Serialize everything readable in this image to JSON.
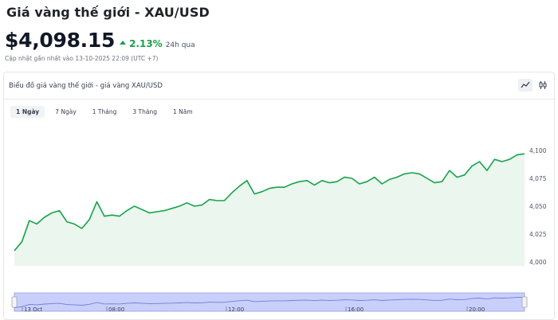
{
  "header": {
    "title": "Giá vàng thế giới - XAU/USD",
    "price": "$4,098.15",
    "change": "2.13%",
    "period": "24h qua",
    "updated": "Cập nhật gần nhất vào 13-10-2025 22:09 (UTC +7)"
  },
  "card": {
    "title": "Biểu đồ giá vàng thế giới - giá vàng XAU/USD",
    "tools": [
      {
        "icon": "line-chart-icon",
        "active": true
      },
      {
        "icon": "candlestick-icon",
        "active": false
      }
    ]
  },
  "tabs": [
    {
      "label": "1 Ngày",
      "active": true
    },
    {
      "label": "7 Ngày",
      "active": false
    },
    {
      "label": "1 Tháng",
      "active": false
    },
    {
      "label": "3 Tháng",
      "active": false
    },
    {
      "label": "1 Năm",
      "active": false
    }
  ],
  "colors": {
    "line": "#16a34a",
    "area": "#eaf6ee",
    "positive": "#16a34a",
    "navigator_fill": "#c9cffb",
    "navigator_line": "#8d9be8"
  },
  "chart_data": {
    "type": "area",
    "title": "",
    "xlabel": "",
    "ylabel": "",
    "ylim": [
      4000,
      4100
    ],
    "y_ticks": [
      "4,000",
      "4,025",
      "4,050",
      "4,075",
      "4,100"
    ],
    "y_tick_values": [
      4000,
      4025,
      4050,
      4075,
      4100
    ],
    "grid": false,
    "series": [
      {
        "values": [
          4010,
          4018,
          4037,
          4034,
          4040,
          4044,
          4046,
          4036,
          4034,
          4030,
          4038,
          4054,
          4041,
          4042,
          4041,
          4046,
          4050,
          4047,
          4044,
          4045,
          4046,
          4048,
          4050,
          4053,
          4050,
          4051,
          4056,
          4055,
          4055,
          4062,
          4068,
          4073,
          4061,
          4063,
          4066,
          4067,
          4067,
          4070,
          4072,
          4073,
          4069,
          4073,
          4071,
          4072,
          4076,
          4075,
          4070,
          4072,
          4076,
          4070,
          4074,
          4076,
          4079,
          4080,
          4079,
          4075,
          4071,
          4072,
          4082,
          4076,
          4078,
          4086,
          4090,
          4082,
          4092,
          4090,
          4092,
          4096,
          4097
        ]
      }
    ],
    "navigator": {
      "x_labels": [
        "13 Oct",
        "08:00",
        "12:00",
        "16:00",
        "20:00"
      ]
    }
  }
}
